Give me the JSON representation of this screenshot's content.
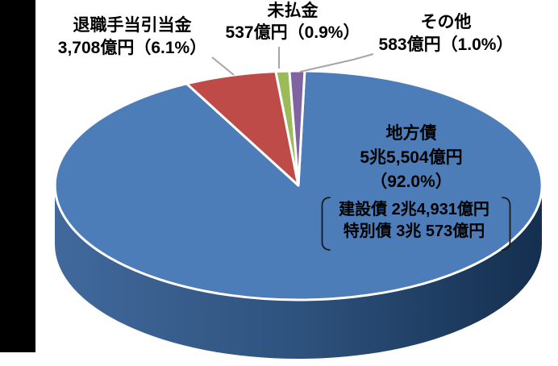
{
  "chart": {
    "background": "#FFFFFF",
    "leader_line_color": "#A6A6A6",
    "slice_border_color": "#FFFFFF",
    "bracket_color": "#1A1A1A",
    "side_gradient": [
      "#41699C",
      "#2E527D",
      "#142F4F"
    ],
    "left_black_bar": true
  },
  "chart_data": {
    "type": "pie",
    "style": "3d",
    "title": "",
    "unit": "億円",
    "legend": "none",
    "slices": [
      {
        "label": "地方債",
        "value": 55504,
        "display_value": "5兆5,504億円",
        "percent": 92.0,
        "color": "#4C7DB9"
      },
      {
        "label": "退職手当引当金",
        "value": 3708,
        "display_value": "3,708億円",
        "percent": 6.1,
        "color": "#BE4B48"
      },
      {
        "label": "未払金",
        "value": 537,
        "display_value": "537億円",
        "percent": 0.9,
        "color": "#9BBB59"
      },
      {
        "label": "その他",
        "value": 583,
        "display_value": "583億円",
        "percent": 1.0,
        "color": "#8064A2"
      }
    ],
    "breakdown_of": "地方債",
    "breakdown": [
      {
        "label": "建設債",
        "display_value": "2兆4,931億円",
        "value": 24931
      },
      {
        "label": "特別債",
        "display_value": "3兆 573億円",
        "value": 30573
      }
    ]
  },
  "labels": {
    "taishoku_line1": "退職手当引当金",
    "taishoku_line2": "3,708億円（6.1%）",
    "mibarai_line1": "未払金",
    "mibarai_line2": "537億円（0.9%）",
    "sonota_line1": "その他",
    "sonota_line2": "583億円（1.0%）",
    "chihosai_line1": "地方債",
    "chihosai_line2": "5兆5,504億円",
    "chihosai_line3": "（92.0%）",
    "bracket_line1": "建設債 2兆4,931億円",
    "bracket_line2": "特別債 3兆  573億円"
  }
}
